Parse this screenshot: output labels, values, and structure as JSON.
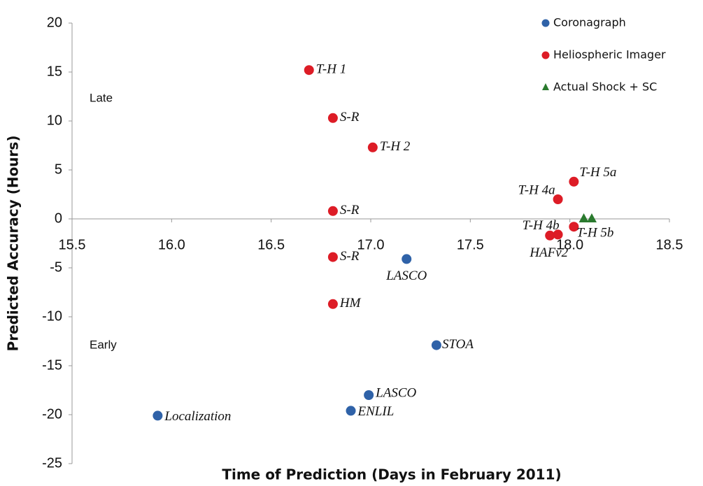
{
  "chart_data": {
    "type": "scatter",
    "x_label": "Time of Prediction (Days in February 2011)",
    "y_label": "Predicted Accuracy (Hours)",
    "annotations": [
      "Late",
      "Early"
    ],
    "xlim": [
      15.5,
      18.5
    ],
    "ylim": [
      -25,
      20
    ],
    "xticks": [
      15.5,
      {
        "value": 16.0,
        "label": "16.0"
      },
      16.5,
      {
        "value": 17.0,
        "label": "17.0"
      },
      17.5,
      {
        "value": 18.0,
        "label": "18.0"
      },
      18.5
    ],
    "yticks": [
      -25,
      -20,
      -15,
      -10,
      -5,
      0,
      5,
      10,
      15,
      20
    ],
    "legend_position": "upper right",
    "series": [
      {
        "name": "Coronagraph",
        "color": "#2f62a8",
        "marker": "circle",
        "x": [
          17.18,
          17.33,
          16.99,
          16.9,
          15.93
        ],
        "values": [
          -4.1,
          -12.9,
          -18.0,
          -19.6,
          -20.1
        ],
        "labels": [
          "LASCO",
          "STOA",
          "LASCO",
          "ENLIL",
          "Localization"
        ]
      },
      {
        "name": "Heliospheric Imager",
        "color": "#dd1c26",
        "marker": "circle",
        "x": [
          16.69,
          16.81,
          17.01,
          16.81,
          16.81,
          16.81,
          17.94,
          18.02,
          17.94,
          18.02,
          17.9
        ],
        "values": [
          15.2,
          10.3,
          7.3,
          0.8,
          -3.9,
          -8.7,
          2.0,
          3.8,
          -1.6,
          -0.8,
          -1.7
        ],
        "labels": [
          "T-H 1",
          "S-R",
          "T-H 2",
          "S-R",
          "S-R",
          "HM",
          "T-H 4a",
          "T-H 5a",
          "T-H 4b",
          "T-H 5b",
          "HAFv2"
        ]
      },
      {
        "name": "Actual Shock + SC",
        "color": "#2a7a2e",
        "marker": "triangle",
        "x": [
          18.07,
          18.11
        ],
        "values": [
          0,
          0
        ]
      }
    ]
  }
}
